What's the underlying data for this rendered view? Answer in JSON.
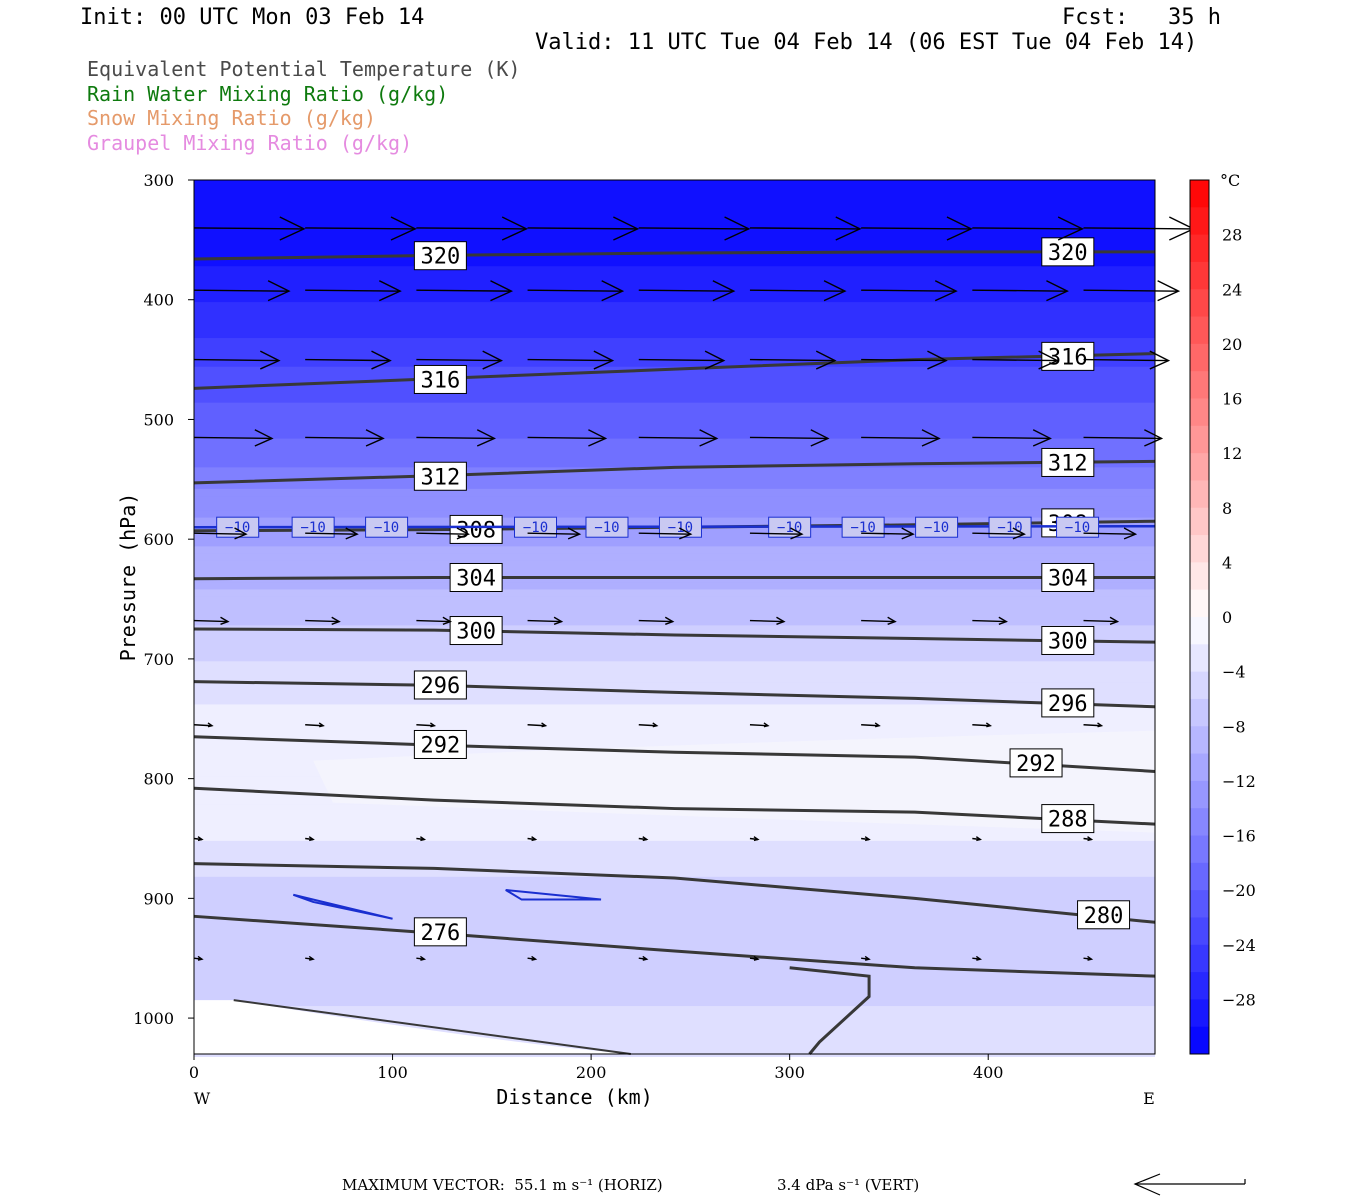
{
  "header": {
    "init": "Init: 00 UTC Mon 03 Feb 14",
    "fcst": "Fcst:   35 h",
    "valid": "Valid: 11 UTC Tue 04 Feb 14 (06 EST Tue 04 Feb 14)"
  },
  "legend": [
    {
      "label": "Equivalent Potential Temperature (K)",
      "color": "#4a4a4a"
    },
    {
      "label": "Rain Water Mixing Ratio (g/kg)",
      "color": "#0e7a0e"
    },
    {
      "label": "Snow Mixing Ratio (g/kg)",
      "color": "#e59a6a"
    },
    {
      "label": "Graupel Mixing Ratio (g/kg)",
      "color": "#e58be0"
    }
  ],
  "footer": {
    "horiz": "MAXIMUM VECTOR:  55.1 m s⁻¹ (HORIZ)",
    "vert": "3.4 dPa s⁻¹ (VERT)"
  },
  "chart_data": {
    "type": "contour cross-section",
    "xlabel": "Distance (km)",
    "ylabel": "Pressure (hPa)",
    "x_ticks": [
      0,
      100,
      200,
      300,
      400
    ],
    "x_end_labels": {
      "left": "W",
      "right": "E"
    },
    "xlim": [
      0,
      484
    ],
    "y_ticks": [
      300,
      400,
      500,
      600,
      700,
      800,
      900,
      1000
    ],
    "ylim": [
      300,
      1030
    ],
    "colorbar": {
      "unit": "°C",
      "labels": [
        28,
        24,
        20,
        16,
        12,
        8,
        4,
        0,
        -4,
        -8,
        -12,
        -16,
        -20,
        -24,
        -28
      ],
      "range": [
        -32,
        32
      ],
      "step": 2
    },
    "theta_e_contours": [
      {
        "value": 320,
        "y": [
          366,
          363,
          361,
          360,
          360
        ],
        "labels_at_x": [
          112,
          428
        ]
      },
      {
        "value": 316,
        "y": [
          474,
          466,
          458,
          450,
          445
        ],
        "labels_at_x": [
          112,
          428
        ]
      },
      {
        "value": 312,
        "y": [
          553,
          547,
          540,
          537,
          535
        ],
        "labels_at_x": [
          112,
          428
        ]
      },
      {
        "value": 308,
        "y": [
          593,
          592,
          590,
          588,
          585
        ],
        "labels_at_x": [
          130,
          428
        ]
      },
      {
        "value": 304,
        "y": [
          633,
          632,
          632,
          632,
          632
        ],
        "labels_at_x": [
          130,
          428
        ]
      },
      {
        "value": 300,
        "y": [
          675,
          676,
          680,
          683,
          686
        ],
        "labels_at_x": [
          130,
          428
        ]
      },
      {
        "value": 296,
        "y": [
          719,
          722,
          728,
          733,
          740
        ],
        "labels_at_x": [
          112,
          428
        ]
      },
      {
        "value": 292,
        "y": [
          765,
          772,
          778,
          782,
          794
        ],
        "labels_at_x": [
          112,
          412
        ]
      },
      {
        "value": 288,
        "y": [
          808,
          818,
          825,
          828,
          838
        ],
        "labels_at_x": [
          428
        ]
      },
      {
        "value": 280,
        "y": [
          871,
          875,
          883,
          900,
          920
        ],
        "labels_at_x": [
          446
        ]
      },
      {
        "value": 276,
        "y": [
          915,
          929,
          944,
          958,
          965
        ],
        "labels_at_x": [
          112
        ]
      }
    ],
    "temperature_contours": [
      {
        "value": -10,
        "y_approx": 590
      }
    ],
    "vector_rows_hPa": [
      340,
      392,
      450,
      515,
      595,
      668,
      755,
      850,
      950
    ]
  }
}
